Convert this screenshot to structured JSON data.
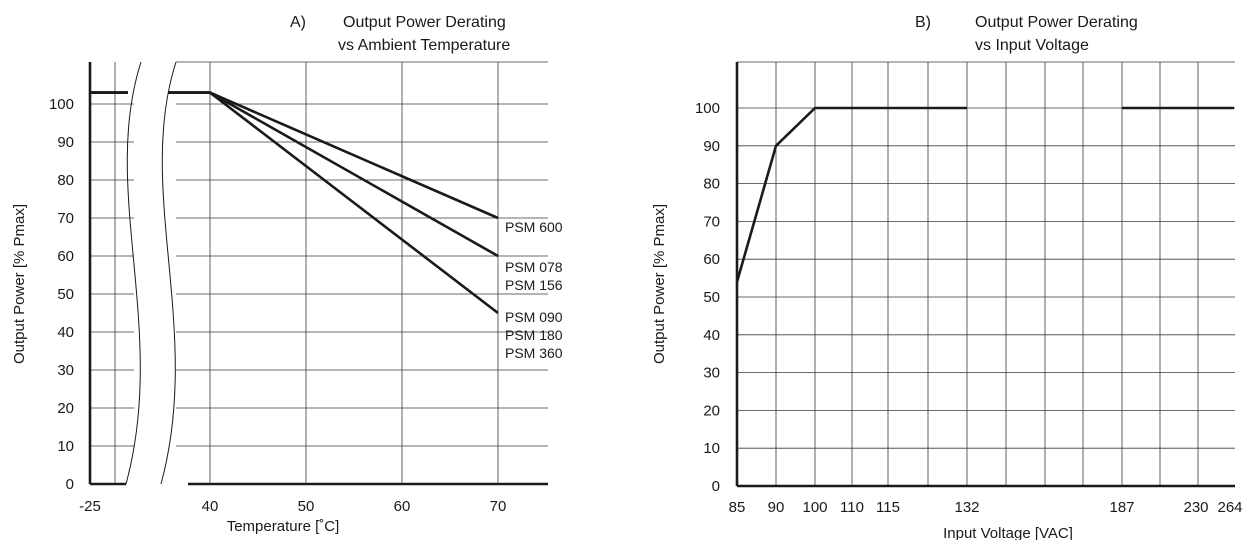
{
  "chart_data": [
    {
      "type": "line",
      "panel": "A)",
      "title": "Output Power Derating",
      "subtitle": "vs Ambient Temperature",
      "xlabel": "Temperature [˚C]",
      "ylabel": "Output Power [% Pmax]",
      "ylim": [
        0,
        100
      ],
      "yticks": [
        "0",
        "10",
        "20",
        "30",
        "40",
        "50",
        "60",
        "70",
        "80",
        "90",
        "100"
      ],
      "xticks": [
        "-25",
        "40",
        "50",
        "60",
        "70"
      ],
      "axis_break": true,
      "grid": true,
      "series": [
        {
          "name": "PSM 600",
          "label_lines": [
            "PSM 600"
          ],
          "x": [
            -25,
            -20,
            40,
            70
          ],
          "y": [
            103,
            103,
            103,
            70
          ]
        },
        {
          "name": "PSM 078 PSM 156",
          "label_lines": [
            "PSM 078",
            "PSM 156"
          ],
          "x": [
            -25,
            -20,
            40,
            70
          ],
          "y": [
            103,
            103,
            103,
            60
          ]
        },
        {
          "name": "PSM 090 PSM 180 PSM 360",
          "label_lines": [
            "PSM 090",
            "PSM 180",
            "PSM 360"
          ],
          "x": [
            -25,
            -20,
            40,
            70
          ],
          "y": [
            103,
            103,
            103,
            45
          ]
        }
      ]
    },
    {
      "type": "line",
      "panel": "B)",
      "title": "Output Power Derating",
      "subtitle": "vs Input Voltage",
      "xlabel": "Input Voltage [VAC]",
      "ylabel": "Output Power [% Pmax]",
      "ylim": [
        0,
        100
      ],
      "yticks": [
        "0",
        "10",
        "20",
        "30",
        "40",
        "50",
        "60",
        "70",
        "80",
        "90",
        "100"
      ],
      "xticks": [
        "85",
        "90",
        "100",
        "110",
        "115",
        "132",
        "187",
        "230",
        "264"
      ],
      "grid": true,
      "series": [
        {
          "name": "",
          "x": [
            85,
            90,
            100,
            132
          ],
          "y": [
            54,
            90,
            100,
            100
          ]
        },
        {
          "name": "",
          "x": [
            187,
            264
          ],
          "y": [
            100,
            100
          ]
        }
      ]
    }
  ]
}
